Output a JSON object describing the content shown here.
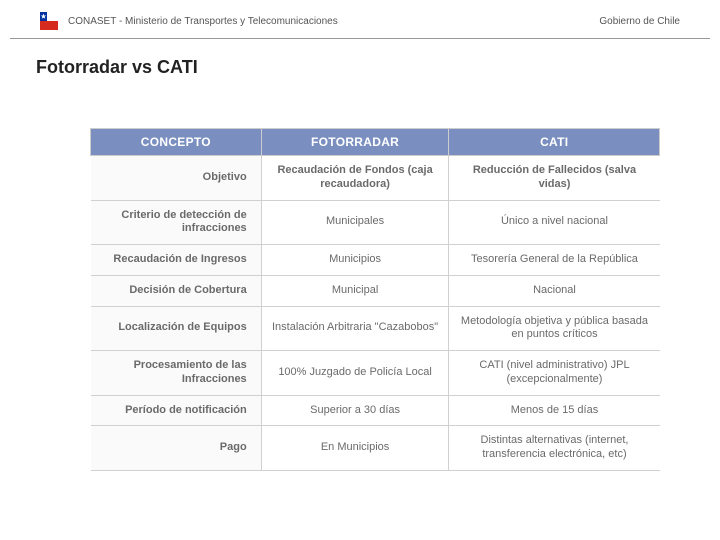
{
  "header": {
    "org_text": "CONASET - Ministerio de Transportes y Telecomunicaciones",
    "gov_text": "Gobierno de Chile",
    "flag_colors": {
      "blue": "#0033a0",
      "red": "#d52b1e",
      "white": "#ffffff"
    }
  },
  "page": {
    "title": "Fotorradar vs CATI"
  },
  "table": {
    "header_bg": "#7a8fc0",
    "header_fg": "#ffffff",
    "text_color": "#6a6a6a",
    "border_color": "#d0d0d0",
    "columns": [
      "CONCEPTO",
      "FOTORRADAR",
      "CATI"
    ],
    "rows": [
      {
        "concept": "Objetivo",
        "fotorradar": "Recaudación de Fondos (caja recaudadora)",
        "cati": "Reducción de Fallecidos (salva vidas)",
        "bold": true
      },
      {
        "concept": "Criterio de detección de infracciones",
        "fotorradar": "Municipales",
        "cati": "Único a nivel nacional"
      },
      {
        "concept": "Recaudación de Ingresos",
        "fotorradar": "Municipios",
        "cati": "Tesorería General de la República"
      },
      {
        "concept": "Decisión de Cobertura",
        "fotorradar": "Municipal",
        "cati": "Nacional"
      },
      {
        "concept": "Localización de Equipos",
        "fotorradar": "Instalación Arbitraria \"Cazabobos\"",
        "cati": "Metodología objetiva y pública basada en puntos críticos"
      },
      {
        "concept": "Procesamiento de las Infracciones",
        "fotorradar": "100% Juzgado de Policía Local",
        "cati": "CATI (nivel administrativo) JPL (excepcionalmente)"
      },
      {
        "concept": "Período de notificación",
        "fotorradar": "Superior a 30 días",
        "cati": "Menos de 15 días"
      },
      {
        "concept": "Pago",
        "fotorradar": "En Municipios",
        "cati": "Distintas alternativas (internet, transferencia electrónica, etc)"
      }
    ]
  }
}
